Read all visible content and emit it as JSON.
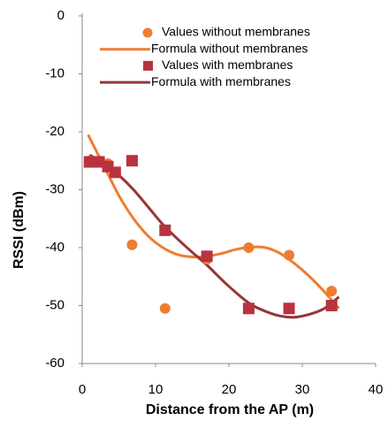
{
  "chart_data": {
    "type": "scatter",
    "x_label": "Distance from the AP (m)",
    "y_label": "RSSI (dBm)",
    "xlim": [
      0,
      40
    ],
    "xticks": [
      0,
      10,
      20,
      30,
      40
    ],
    "ylim": [
      -60,
      0
    ],
    "yticks": [
      0,
      -10,
      -20,
      -30,
      -40,
      -50,
      -60
    ],
    "legend": "top-right",
    "series": [
      {
        "name": "Values without membranes",
        "color": "#ED7D31",
        "mode": "markers",
        "marker": "circle",
        "x": [
          1,
          2.3,
          3.5,
          6.8,
          11.3,
          17,
          22.7,
          28.2,
          34
        ],
        "values": [
          -25,
          -25,
          -25.5,
          -39.5,
          -50.5,
          -42,
          -40,
          -41.3,
          -47.5
        ]
      },
      {
        "name": "Formula without membranes",
        "color": "#ED7D31",
        "mode": "line",
        "x": [
          0.8,
          3,
          5,
          7,
          9,
          11,
          13,
          15,
          17,
          19,
          21,
          23,
          25,
          27,
          29,
          31,
          33,
          35
        ],
        "values": [
          -20.5,
          -26,
          -31,
          -35,
          -38,
          -40,
          -41.2,
          -41.6,
          -41.5,
          -41,
          -40.3,
          -39.9,
          -40,
          -41,
          -42.8,
          -45,
          -47.6,
          -50.5
        ]
      },
      {
        "name": "Values with membranes",
        "color": "#B8323F",
        "mode": "markers",
        "marker": "square",
        "x": [
          1,
          2.3,
          3.5,
          4.5,
          6.8,
          11.3,
          17,
          22.7,
          28.2,
          34
        ],
        "values": [
          -25.2,
          -25.2,
          -26,
          -27,
          -25,
          -37,
          -41.5,
          -50.5,
          -50.5,
          -50
        ]
      },
      {
        "name": "Formula with membranes",
        "color": "#943634",
        "mode": "line",
        "x": [
          1,
          3,
          5,
          7,
          9,
          11,
          13,
          15,
          17,
          19,
          21,
          23,
          25,
          27,
          29,
          31,
          33,
          35
        ],
        "values": [
          -24,
          -25.5,
          -27.5,
          -30,
          -33,
          -36,
          -38.5,
          -40.8,
          -43,
          -45.5,
          -47.8,
          -49.8,
          -51,
          -51.8,
          -52,
          -51.5,
          -50.5,
          -48.5
        ]
      }
    ]
  }
}
